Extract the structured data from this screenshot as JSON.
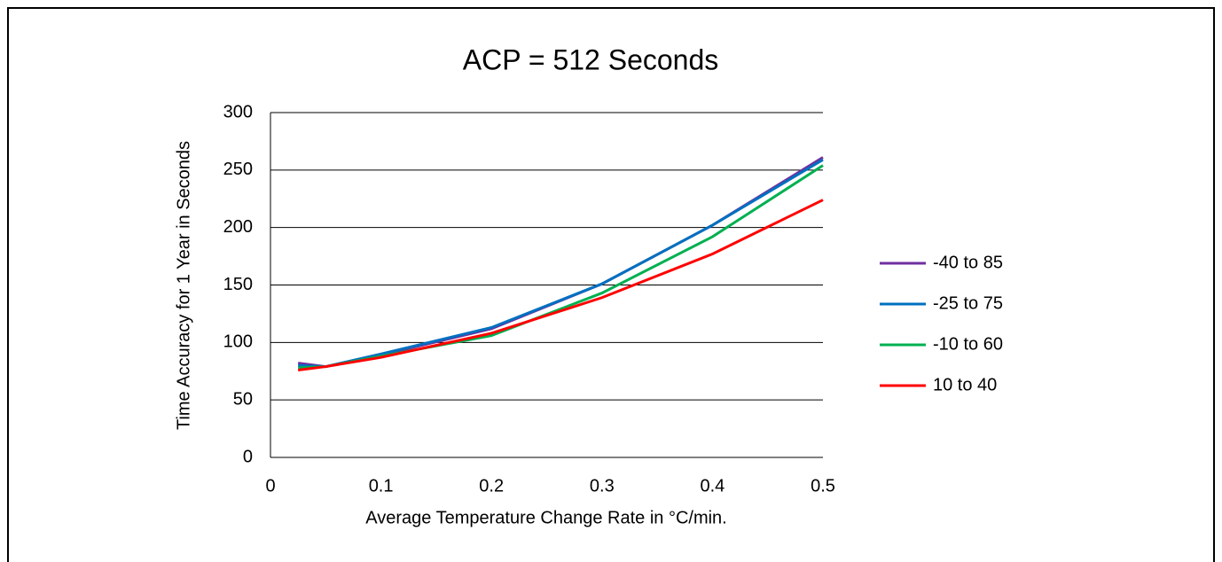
{
  "chart_data": {
    "type": "line",
    "title": "ACP = 512 Seconds",
    "x_label": "Average Temperature Change Rate in °C/min.",
    "y_label": "Time Accuracy for 1 Year in Seconds",
    "x": [
      0.025,
      0.05,
      0.1,
      0.2,
      0.3,
      0.4,
      0.5
    ],
    "series": [
      {
        "name": "-40 to 85",
        "color": "#7030a0",
        "values": [
          82,
          79,
          89,
          112,
          151,
          202,
          261
        ]
      },
      {
        "name": "-25 to 75",
        "color": "#0070c0",
        "values": [
          80,
          79,
          90,
          113,
          151,
          202,
          259
        ]
      },
      {
        "name": "-10 to 60",
        "color": "#00b050",
        "values": [
          78,
          79,
          88,
          106,
          143,
          192,
          254
        ]
      },
      {
        "name": "10 to 40",
        "color": "#ff0000",
        "values": [
          76,
          79,
          87,
          108,
          139,
          177,
          224
        ]
      }
    ],
    "xlim": [
      0,
      0.5
    ],
    "xticks": [
      0,
      0.1,
      0.2,
      0.3,
      0.4,
      0.5
    ],
    "ylim": [
      0,
      300
    ],
    "yticks": [
      0,
      50,
      100,
      150,
      200,
      250,
      300
    ],
    "grid": true,
    "legend": "right"
  }
}
